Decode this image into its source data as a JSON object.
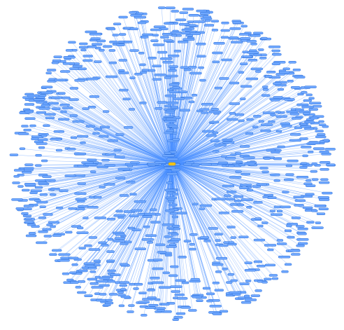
{
  "graph": {
    "layout": "radial",
    "center_node": {
      "color": "#f5c518",
      "stroke": "#c99a00"
    },
    "leaf_node": {
      "fill": "#6fa8ff",
      "stroke": "#2e6fd8"
    },
    "edge_color": "#4a90ff",
    "edge_opacity": 0.55,
    "leaf_count": 900,
    "selected_node": "center"
  }
}
